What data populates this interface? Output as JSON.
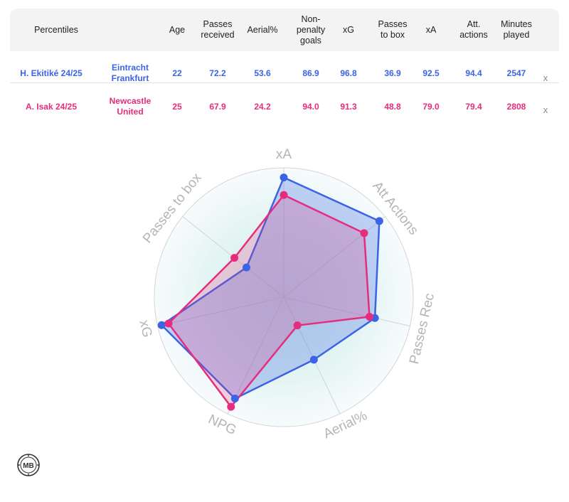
{
  "colors": {
    "player1": "#3b63e6",
    "player2": "#e62c7c",
    "header_bg": "#f3f3f3",
    "axis_label": "#b5b5b5"
  },
  "table": {
    "header": {
      "percentiles": "Percentiles",
      "age": "Age",
      "passes_received": [
        "Passes",
        "received"
      ],
      "aerial": "Aerial%",
      "npg": [
        "Non-",
        "penalty",
        "goals"
      ],
      "xg": "xG",
      "passes_to_box": [
        "Passes",
        "to box"
      ],
      "xa": "xA",
      "att_actions": [
        "Att.",
        "actions"
      ],
      "minutes": [
        "Minutes",
        "played"
      ]
    },
    "rows": [
      {
        "player": "H. Ekitiké 24/25",
        "team": [
          "Eintracht",
          "Frankfurt"
        ],
        "age": "22",
        "passes_received": "72.2",
        "aerial": "53.6",
        "npg": "86.9",
        "xg": "96.8",
        "passes_to_box": "36.9",
        "xa": "92.5",
        "att_actions": "94.4",
        "minutes": "2547",
        "remove": "x"
      },
      {
        "player": "A. Isak 24/25",
        "team": [
          "Newcastle",
          "United"
        ],
        "age": "25",
        "passes_received": "67.9",
        "aerial": "24.2",
        "npg": "94.0",
        "xg": "91.3",
        "passes_to_box": "48.8",
        "xa": "79.0",
        "att_actions": "79.4",
        "minutes": "2808",
        "remove": "x"
      }
    ]
  },
  "chart_data": {
    "type": "radar",
    "axes": [
      "xA",
      "Att Actions",
      "Passes Rec",
      "Aerial%",
      "NPG",
      "xG",
      "Passes to box"
    ],
    "range": [
      0,
      100
    ],
    "series": [
      {
        "name": "H. Ekitiké 24/25",
        "values": [
          92.5,
          94.4,
          72.2,
          53.6,
          86.9,
          96.8,
          36.9
        ]
      },
      {
        "name": "A. Isak 24/25",
        "values": [
          79.0,
          79.4,
          67.9,
          24.2,
          94.0,
          91.3,
          48.8
        ]
      }
    ]
  },
  "logo": {
    "text": "MB"
  }
}
